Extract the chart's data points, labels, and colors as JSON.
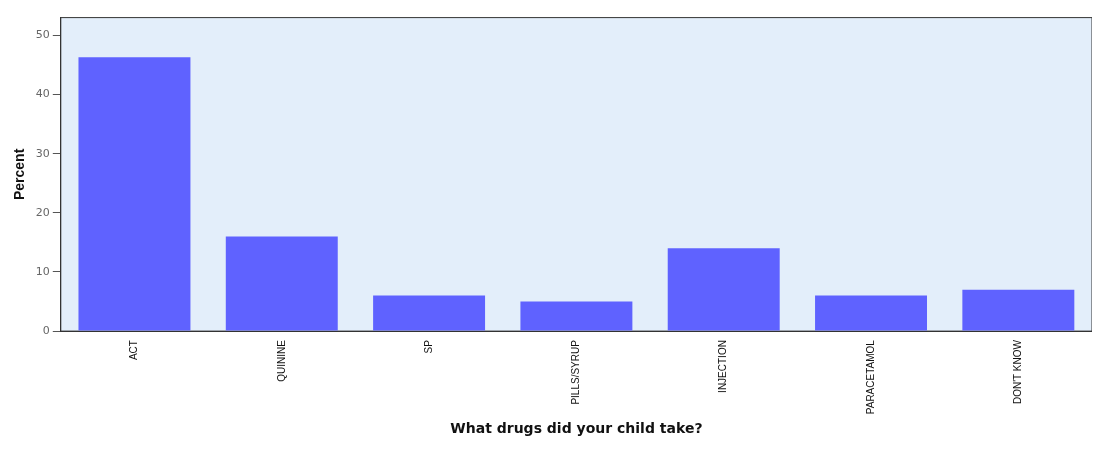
{
  "chart_data": {
    "type": "bar",
    "xlabel": "What drugs did your child take?",
    "ylabel": "Percent",
    "categories": [
      "ACT",
      "QUININE",
      "SP",
      "PILLS/SYRUP",
      "INJECTION",
      "PARACETAMOL",
      "DON'T KNOW"
    ],
    "values": [
      46.3,
      16,
      6,
      5,
      14,
      6,
      7
    ],
    "color": "#5f62ff",
    "ylim": [
      0,
      53
    ],
    "yticks": [
      0,
      10,
      20,
      30,
      40,
      50
    ],
    "grid": false,
    "legend": false
  }
}
